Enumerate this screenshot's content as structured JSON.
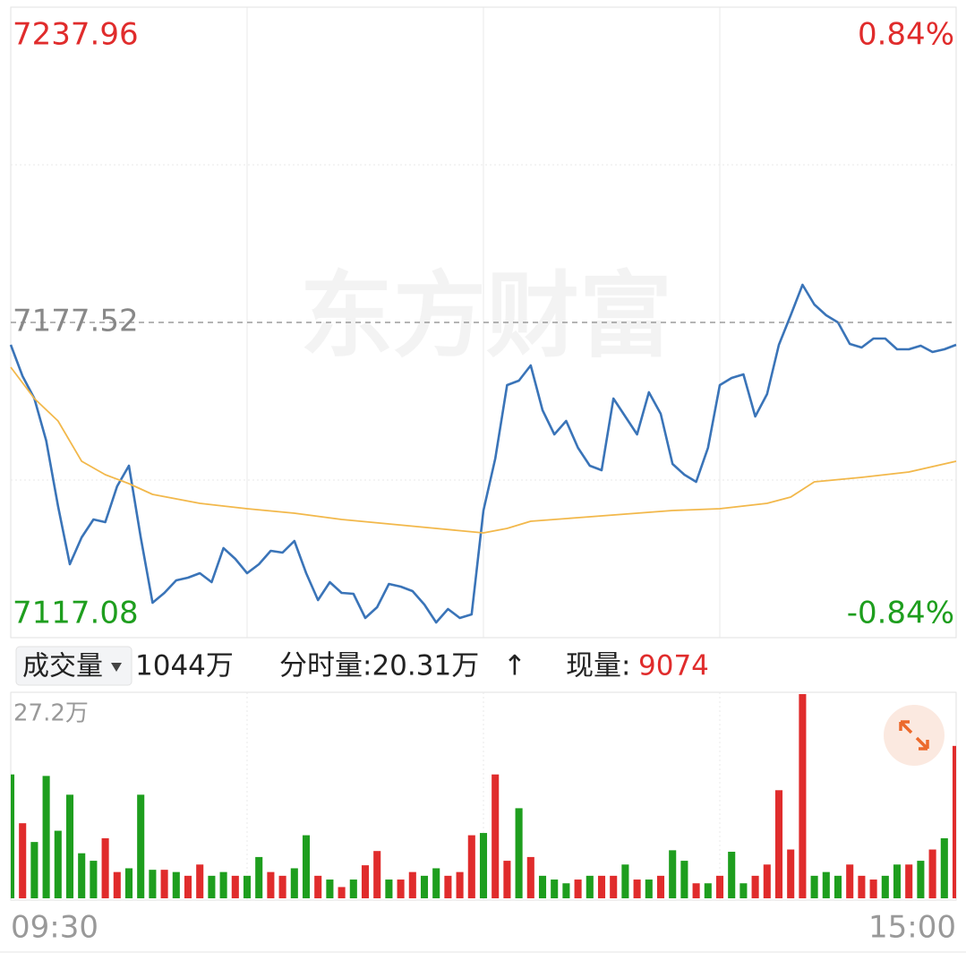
{
  "chart_data": [
    {
      "type": "line",
      "watermark": "东方财富",
      "x": [
        0,
        3,
        6,
        9,
        12,
        15,
        18,
        21,
        24,
        27,
        30,
        33,
        36,
        39,
        42,
        45,
        48,
        51,
        54,
        57,
        60,
        63,
        66,
        69,
        72,
        75,
        78,
        81,
        84,
        87,
        90,
        93,
        96,
        99,
        102,
        105,
        108,
        111,
        114,
        117,
        120,
        123,
        126,
        129,
        132,
        135,
        138,
        141,
        144,
        147,
        150,
        153,
        156,
        159,
        162,
        165,
        168,
        171,
        174,
        177,
        180,
        183,
        186,
        189,
        192,
        195,
        198,
        201,
        204,
        207,
        210,
        213,
        216,
        219,
        222,
        225,
        228,
        231,
        234,
        237,
        240
      ],
      "series": [
        {
          "color": "#3a74b8",
          "values": [
            7173.23,
            7167.22,
            7162.93,
            7154.86,
            7142.32,
            7131.16,
            7136.31,
            7139.75,
            7139.23,
            7146.1,
            7150.05,
            7136.31,
            7123.78,
            7125.67,
            7128.07,
            7128.59,
            7129.44,
            7127.73,
            7134.25,
            7132.19,
            7129.44,
            7131.16,
            7133.74,
            7133.39,
            7135.63,
            7129.44,
            7124.29,
            7127.73,
            7125.67,
            7125.49,
            7120.86,
            7122.92,
            7127.38,
            7126.87,
            7126.01,
            7123.44,
            7120.0,
            7122.58,
            7120.86,
            7121.55,
            7141.46,
            7151.42,
            7165.5,
            7166.36,
            7169.28,
            7160.69,
            7156.06,
            7158.63,
            7153.48,
            7150.05,
            7149.19,
            7162.93,
            7159.49,
            7156.06,
            7164.13,
            7160.01,
            7150.39,
            7148.33,
            7146.96,
            7153.48,
            7165.5,
            7166.88,
            7167.56,
            7159.49,
            7163.79,
            7173.23,
            7178.9,
            7184.73,
            7180.96,
            7178.9,
            7177.52,
            7173.4,
            7172.71,
            7174.43,
            7174.43,
            7172.37,
            7172.37,
            7173.06,
            7171.86,
            7172.37,
            7173.23
          ]
        },
        {
          "color": "#f2b84b",
          "x": [
            0,
            6,
            12,
            18,
            24,
            30,
            36,
            48,
            60,
            72,
            84,
            96,
            108,
            120,
            126,
            132,
            144,
            156,
            168,
            180,
            192,
            198,
            204,
            216,
            228,
            240
          ],
          "values": [
            7168.94,
            7162.93,
            7158.63,
            7150.91,
            7148.33,
            7146.61,
            7144.55,
            7142.84,
            7141.81,
            7140.95,
            7139.75,
            7138.89,
            7138.03,
            7137.17,
            7138.03,
            7139.4,
            7140.09,
            7140.78,
            7141.46,
            7141.81,
            7142.84,
            7144.04,
            7146.96,
            7147.82,
            7148.85,
            7150.91
          ]
        }
      ],
      "xlim": [
        0,
        240
      ],
      "xgrid": [
        60,
        120,
        180
      ],
      "ylim": [
        7117.08,
        7237.96
      ],
      "yticks": [
        7117.08,
        7177.52,
        7237.96
      ],
      "ygrid": [
        7147.3,
        7207.74
      ],
      "y2lim": [
        -0.84,
        0.84
      ],
      "y2ticks": [
        {
          "value": -0.84,
          "label": "-0.84%"
        },
        {
          "value": 0.84,
          "label": "0.84%"
        }
      ]
    },
    {
      "type": "bar",
      "x": [
        0,
        3,
        6,
        9,
        12,
        15,
        18,
        21,
        24,
        27,
        30,
        33,
        36,
        39,
        42,
        45,
        48,
        51,
        54,
        57,
        60,
        63,
        66,
        69,
        72,
        75,
        78,
        81,
        84,
        87,
        90,
        93,
        96,
        99,
        102,
        105,
        108,
        111,
        114,
        117,
        120,
        123,
        126,
        129,
        132,
        135,
        138,
        141,
        144,
        147,
        150,
        153,
        156,
        159,
        162,
        165,
        168,
        171,
        174,
        177,
        180,
        183,
        186,
        189,
        192,
        195,
        198,
        201,
        204,
        207,
        210,
        213,
        216,
        219,
        222,
        225,
        228,
        231,
        234,
        237,
        240
      ],
      "values": [
        16.5,
        10,
        7.5,
        16.3,
        9,
        13.8,
        6,
        5,
        8,
        3.5,
        4,
        13.8,
        3.8,
        3.8,
        3.5,
        3,
        4.5,
        3,
        3.5,
        3,
        3,
        5.5,
        3.5,
        3,
        4,
        8.4,
        3,
        2.5,
        1.5,
        2.5,
        4.4,
        6.3,
        2.5,
        2.5,
        3.5,
        3,
        4,
        3,
        3.5,
        8.4,
        8.7,
        16.5,
        5,
        12,
        5.5,
        3,
        2.5,
        2,
        2.5,
        3,
        3,
        3,
        4.5,
        2.5,
        2.5,
        3,
        6.4,
        5,
        2,
        2,
        3,
        6.2,
        2,
        3,
        4.5,
        14.4,
        6.5,
        27.2,
        3,
        3.5,
        3,
        4.5,
        3,
        2.5,
        3,
        4.5,
        4.5,
        5,
        6.5,
        8,
        20.3
      ],
      "colors": [
        "#1e9e1e",
        "#e02c2c",
        "#1e9e1e",
        "#1e9e1e",
        "#1e9e1e",
        "#1e9e1e",
        "#1e9e1e",
        "#1e9e1e",
        "#e02c2c",
        "#e02c2c",
        "#1e9e1e",
        "#1e9e1e",
        "#1e9e1e",
        "#e02c2c",
        "#1e9e1e",
        "#e02c2c",
        "#e02c2c",
        "#1e9e1e",
        "#1e9e1e",
        "#e02c2c",
        "#1e9e1e",
        "#1e9e1e",
        "#e02c2c",
        "#e02c2c",
        "#1e9e1e",
        "#1e9e1e",
        "#e02c2c",
        "#1e9e1e",
        "#e02c2c",
        "#1e9e1e",
        "#e02c2c",
        "#e02c2c",
        "#1e9e1e",
        "#e02c2c",
        "#e02c2c",
        "#1e9e1e",
        "#1e9e1e",
        "#e02c2c",
        "#e02c2c",
        "#e02c2c",
        "#1e9e1e",
        "#e02c2c",
        "#e02c2c",
        "#1e9e1e",
        "#e02c2c",
        "#1e9e1e",
        "#1e9e1e",
        "#1e9e1e",
        "#e02c2c",
        "#1e9e1e",
        "#e02c2c",
        "#e02c2c",
        "#1e9e1e",
        "#e02c2c",
        "#1e9e1e",
        "#e02c2c",
        "#1e9e1e",
        "#1e9e1e",
        "#e02c2c",
        "#1e9e1e",
        "#e02c2c",
        "#1e9e1e",
        "#1e9e1e",
        "#e02c2c",
        "#e02c2c",
        "#e02c2c",
        "#e02c2c",
        "#e02c2c",
        "#1e9e1e",
        "#1e9e1e",
        "#1e9e1e",
        "#e02c2c",
        "#e02c2c",
        "#e02c2c",
        "#1e9e1e",
        "#1e9e1e",
        "#e02c2c",
        "#1e9e1e",
        "#e02c2c",
        "#1e9e1e",
        "#e02c2c"
      ],
      "xlim": [
        0,
        240
      ],
      "xgrid": [
        60,
        120,
        180
      ],
      "xticks": [
        {
          "value": 0,
          "label": "09:30"
        },
        {
          "value": 240,
          "label": "15:00"
        }
      ],
      "ylim": [
        0,
        27.2
      ],
      "yticks": [
        {
          "value": 27.2,
          "label": "27.2万"
        }
      ]
    }
  ],
  "info_bar": {
    "selector": "成交量",
    "total": "1044万",
    "interval_volume": "分时量:20.31万",
    "arrow": "↑",
    "current_label": "现量:",
    "current_value": "9074"
  }
}
